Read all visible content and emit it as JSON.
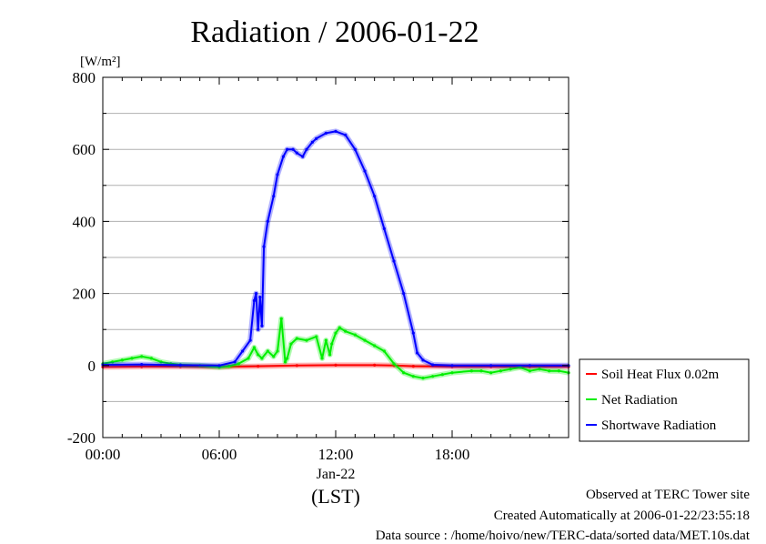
{
  "chart_data": {
    "type": "line",
    "title": "Radiation / 2006-01-22",
    "ylabel": "[W/m²]",
    "xlabel": "(LST)",
    "date_label": "Jan-22",
    "ylim": [
      -200,
      800
    ],
    "yticks": [
      -200,
      0,
      200,
      400,
      600,
      800
    ],
    "xlim": [
      0,
      24
    ],
    "xticks": [
      {
        "value": 0,
        "label": "00:00"
      },
      {
        "value": 6,
        "label": "06:00"
      },
      {
        "value": 12,
        "label": "12:00"
      },
      {
        "value": 18,
        "label": "18:00"
      }
    ],
    "grid": true,
    "legend_position": "right",
    "series": [
      {
        "name": "Soil Heat Flux 0.02m",
        "color": "#ff0000",
        "x": [
          0,
          2,
          4,
          6,
          8,
          10,
          12,
          14,
          15,
          16,
          18,
          20,
          22,
          24
        ],
        "y": [
          -4,
          -3,
          -3,
          -4,
          -2,
          0,
          1,
          1,
          0,
          -2,
          -3,
          -3,
          -3,
          -3
        ]
      },
      {
        "name": "Net Radiation",
        "color": "#00ee00",
        "x": [
          0,
          0.5,
          1.0,
          1.5,
          2.0,
          2.5,
          3.0,
          3.5,
          4.0,
          5.0,
          6.0,
          6.5,
          7.0,
          7.5,
          7.8,
          8.0,
          8.2,
          8.5,
          8.8,
          9.0,
          9.2,
          9.4,
          9.5,
          9.7,
          10.0,
          10.5,
          11.0,
          11.3,
          11.5,
          11.7,
          11.8,
          12.0,
          12.2,
          12.5,
          13.0,
          13.5,
          14.0,
          14.5,
          15.0,
          15.5,
          16.0,
          16.5,
          17.0,
          17.5,
          18.0,
          19.0,
          19.5,
          20.0,
          20.5,
          21.0,
          21.5,
          22.0,
          22.5,
          23.0,
          23.5,
          24.0
        ],
        "y": [
          5,
          10,
          15,
          20,
          25,
          20,
          10,
          5,
          2,
          0,
          -5,
          -2,
          5,
          20,
          50,
          30,
          20,
          40,
          25,
          40,
          130,
          10,
          20,
          60,
          75,
          70,
          80,
          20,
          70,
          30,
          60,
          90,
          105,
          95,
          85,
          70,
          55,
          40,
          5,
          -20,
          -30,
          -35,
          -30,
          -25,
          -20,
          -15,
          -15,
          -20,
          -15,
          -10,
          -5,
          -15,
          -10,
          -15,
          -15,
          -20
        ]
      },
      {
        "name": "Shortwave Radiation",
        "color": "#0000ff",
        "x": [
          0,
          2,
          4,
          6,
          6.8,
          7.2,
          7.6,
          7.8,
          7.9,
          8.0,
          8.1,
          8.2,
          8.3,
          8.5,
          8.8,
          9.0,
          9.3,
          9.5,
          9.8,
          10.0,
          10.3,
          10.5,
          10.8,
          11.0,
          11.5,
          12.0,
          12.5,
          13.0,
          13.5,
          14.0,
          14.5,
          15.0,
          15.5,
          16.0,
          16.2,
          16.5,
          17.0,
          18.0,
          20.0,
          22.0,
          24.0
        ],
        "y": [
          2,
          3,
          1,
          0,
          10,
          40,
          70,
          180,
          200,
          100,
          190,
          110,
          330,
          400,
          470,
          530,
          580,
          600,
          600,
          590,
          580,
          600,
          620,
          630,
          645,
          650,
          640,
          600,
          540,
          470,
          380,
          290,
          200,
          90,
          35,
          15,
          2,
          0,
          0,
          0,
          0
        ]
      }
    ]
  },
  "footer": {
    "line1": "Observed at TERC Tower site",
    "line2": "Created Automatically at 2006-01-22/23:55:18",
    "line3": "Data source : /home/hoivo/new/TERC-data/sorted  data/MET.10s.dat"
  }
}
